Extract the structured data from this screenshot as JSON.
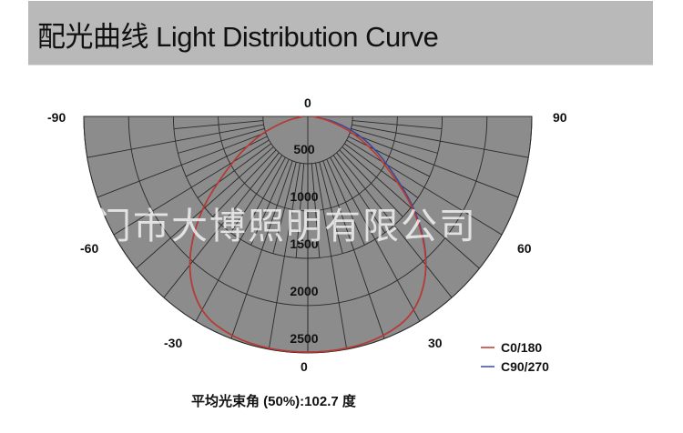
{
  "header": {
    "title": "配光曲线  Light Distribution Curve"
  },
  "footer": {
    "beam_angle_text": "平均光束角 (50%):102.7 度"
  },
  "watermark": "江门市大博照明有限公司",
  "chart_data": {
    "type": "polar",
    "title": "配光曲线  Light Distribution Curve",
    "angle_labels": [
      {
        "angle": 0,
        "label": "0",
        "pos": "top"
      },
      {
        "angle": -90,
        "label": "-90"
      },
      {
        "angle": 90,
        "label": "90"
      },
      {
        "angle": -60,
        "label": "-60"
      },
      {
        "angle": 60,
        "label": "60"
      },
      {
        "angle": -30,
        "label": "-30"
      },
      {
        "angle": 30,
        "label": "30"
      },
      {
        "angle": 0,
        "label": "0",
        "pos": "bottom"
      }
    ],
    "radial_ticks": [
      500,
      1000,
      1500,
      2000,
      2500
    ],
    "rlim": [
      0,
      2500
    ],
    "grid": true,
    "legend_position": "bottom-right",
    "angles": [
      -90,
      -80,
      -70,
      -60,
      -50,
      -40,
      -30,
      -20,
      -10,
      0,
      10,
      20,
      30,
      40,
      50,
      60,
      70,
      80,
      90
    ],
    "series": [
      {
        "name": "C0/180",
        "color": "#c0392b",
        "values": [
          50,
          250,
          600,
          1000,
          1600,
          2100,
          2400,
          2480,
          2500,
          2500,
          2500,
          2480,
          2400,
          2100,
          1600,
          1000,
          600,
          250,
          50
        ]
      },
      {
        "name": "C90/270",
        "color": "#3a4a9a",
        "values": [
          50,
          250,
          600,
          1000,
          1600,
          2100,
          2400,
          2480,
          2500,
          2500,
          2500,
          2480,
          2400,
          2100,
          1620,
          1050,
          680,
          330,
          60
        ]
      }
    ]
  }
}
